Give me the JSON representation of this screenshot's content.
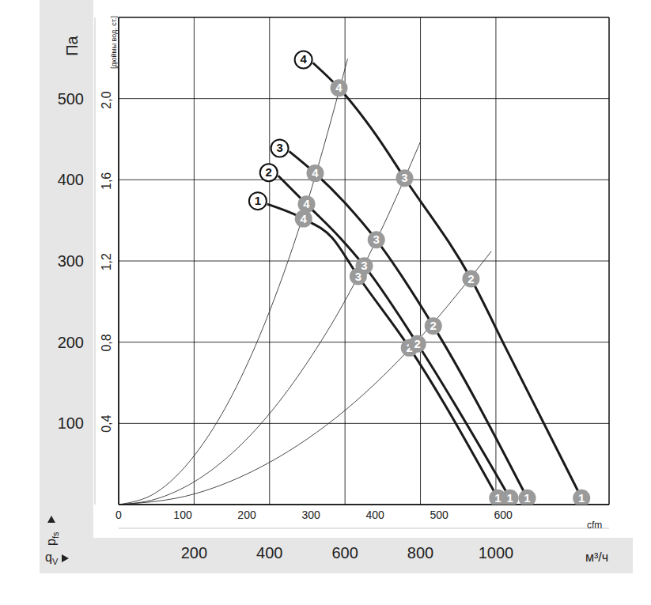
{
  "chart_data": {
    "type": "line",
    "xlabel": "м³/ч",
    "x2label": "cfm",
    "ylabel": "Па",
    "y2label": "[дюймы вод. ст.]",
    "y_symbol": {
      "symbol": "p",
      "subscript": "fs"
    },
    "x_symbol": {
      "symbol": "q",
      "subscript": "V"
    },
    "xlim": [
      0,
      1300
    ],
    "xticks": [
      200,
      400,
      600,
      800,
      1000
    ],
    "x2lim": [
      0,
      765.2
    ],
    "x2ticks": [
      0,
      100,
      200,
      300,
      400,
      500,
      600
    ],
    "ylim": [
      0,
      600
    ],
    "yticks": [
      100,
      200,
      300,
      400,
      500
    ],
    "y2lim": [
      0,
      2.409
    ],
    "y2ticks": [
      {
        "value": 0.4,
        "label": "0,4"
      },
      {
        "value": 0.8,
        "label": "0,8"
      },
      {
        "value": 1.2,
        "label": "1,2"
      },
      {
        "value": 1.6,
        "label": "1,6"
      },
      {
        "value": 2.0,
        "label": "2,0"
      }
    ],
    "grid": true,
    "series": [
      {
        "name": "1",
        "color": "#1a1a1a",
        "x": [
          394,
          490,
          565,
          635,
          771,
          1005
        ],
        "values": [
          370,
          352,
          329,
          281,
          193,
          8
        ],
        "point_labels": [
          null,
          "4",
          null,
          "3",
          "2",
          "1"
        ]
      },
      {
        "name": "2",
        "color": "#1a1a1a",
        "x": [
          423,
          498,
          586,
          651,
          792,
          1037
        ],
        "values": [
          405,
          370,
          329,
          294,
          198,
          8
        ],
        "point_labels": [
          null,
          "4",
          null,
          "3",
          "2",
          "1"
        ]
      },
      {
        "name": "3",
        "color": "#1a1a1a",
        "x": [
          452,
          521,
          607,
          683,
          834,
          1083
        ],
        "values": [
          435,
          408,
          368,
          326,
          220,
          8
        ],
        "point_labels": [
          null,
          "4",
          null,
          "3",
          "2",
          "1"
        ]
      },
      {
        "name": "4",
        "color": "#1a1a1a",
        "x": [
          515,
          584,
          681,
          758,
          934,
          1026,
          1227
        ],
        "values": [
          544,
          513,
          456,
          402,
          278,
          193,
          8
        ],
        "point_labels": [
          null,
          "4",
          null,
          "3",
          "2",
          null,
          "1"
        ]
      }
    ],
    "system_curves": [
      {
        "color": "#333333",
        "x": [
          0,
          100,
          200,
          300,
          400,
          500,
          607
        ],
        "values": [
          0,
          15,
          60,
          134,
          238,
          372,
          549
        ]
      },
      {
        "color": "#333333",
        "x": [
          0,
          100,
          200,
          300,
          400,
          500,
          600,
          700,
          800
        ],
        "values": [
          0,
          7,
          28,
          63,
          112,
          175,
          251,
          342,
          447
        ]
      },
      {
        "color": "#333333",
        "x": [
          0,
          200,
          400,
          600,
          800,
          988
        ],
        "values": [
          0,
          13,
          52,
          116,
          206,
          312
        ]
      }
    ]
  }
}
